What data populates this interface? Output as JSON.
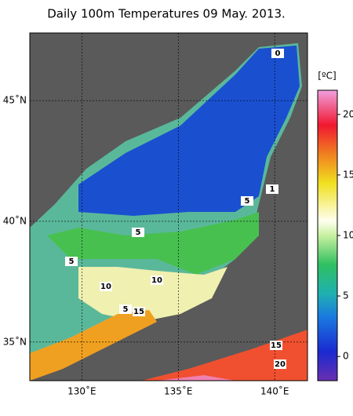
{
  "title": "Daily 100m Temperatures 09 May. 2013.",
  "lonlim": [
    127.3,
    141.7
  ],
  "latlim": [
    33.4,
    47.8
  ],
  "lon_ticks": [
    {
      "value": 130,
      "label": "130˚E"
    },
    {
      "value": 135,
      "label": "135˚E"
    },
    {
      "value": 140,
      "label": "140˚E"
    }
  ],
  "lat_ticks": [
    {
      "value": 45,
      "label": "45˚N"
    },
    {
      "value": 40,
      "label": "40˚N"
    },
    {
      "value": 35,
      "label": "35˚N"
    }
  ],
  "colorbar": {
    "unit": "[ºC]",
    "range": [
      -2,
      22
    ],
    "ticks": [
      0,
      5,
      10,
      15,
      20
    ]
  },
  "contour_labels": [
    "0",
    "5",
    "1",
    "5",
    "5",
    "10",
    "10",
    "5",
    "15",
    "15",
    "20"
  ]
}
